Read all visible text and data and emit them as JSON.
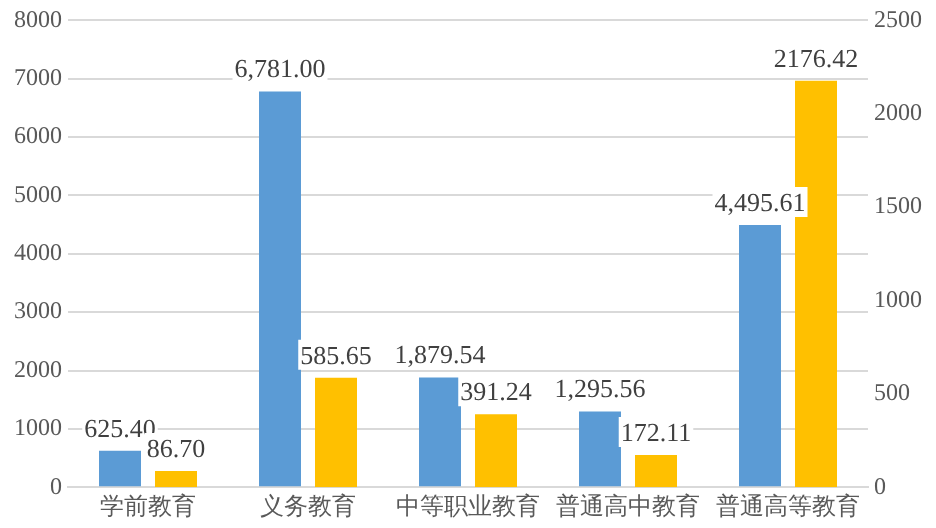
{
  "chart_data": {
    "type": "bar",
    "categories": [
      "学前教育",
      "义务教育",
      "中等职业教育",
      "普通高中教育",
      "普通高等教育"
    ],
    "series": [
      {
        "color": "#5b9bd5",
        "values": [
          625.4,
          6781.0,
          1879.54,
          1295.56,
          4495.61
        ],
        "value_labels": [
          "625.40",
          "6,781.00",
          "1,879.54",
          "1,295.56",
          "4,495.61"
        ]
      },
      {
        "color": "#ffc000",
        "axis": "y2",
        "values": [
          86.7,
          585.65,
          391.24,
          172.11,
          2176.42
        ],
        "value_labels": [
          "86.70",
          "585.65",
          "391.24",
          "172.11",
          "2176.42"
        ]
      }
    ],
    "ylim": [
      0,
      8000
    ],
    "yticks": [
      0,
      1000,
      2000,
      3000,
      4000,
      5000,
      6000,
      7000,
      8000
    ],
    "y2lim": [
      0,
      2500
    ],
    "y2ticks": [
      0,
      500,
      1000,
      1500,
      2000,
      2500
    ],
    "grid": "y",
    "legend": false
  }
}
